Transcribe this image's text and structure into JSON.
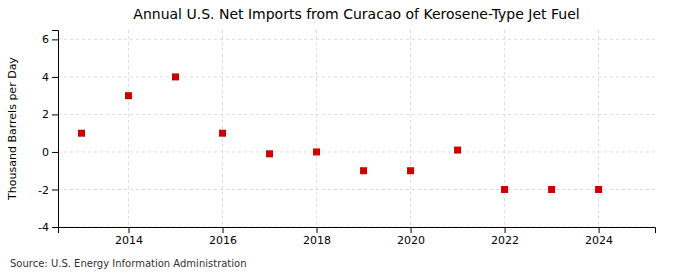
{
  "chart_data": {
    "type": "scatter",
    "title": "Annual U.S. Net Imports from Curacao of Kerosene-Type Jet Fuel",
    "y_label": "Thousand Barrels per Day",
    "annotations": [
      "Source: U.S. Energy Information Administration"
    ],
    "x": [
      2013,
      2014,
      2015,
      2016,
      2017,
      2018,
      2019,
      2020,
      2021,
      2022,
      2023,
      2024
    ],
    "values": [
      1,
      3,
      4,
      1,
      -0.1,
      0,
      -1,
      -1,
      0.1,
      -2,
      -2,
      -2
    ],
    "color": "#cc0000",
    "marker": "square",
    "xlim": [
      2012.5,
      2025.2
    ],
    "ylim": [
      -4,
      6.5
    ],
    "xticks": [
      2014,
      2016,
      2018,
      2020,
      2022,
      2024
    ],
    "yticks": [
      -4,
      -2,
      0,
      2,
      4,
      6
    ],
    "grid": true
  }
}
